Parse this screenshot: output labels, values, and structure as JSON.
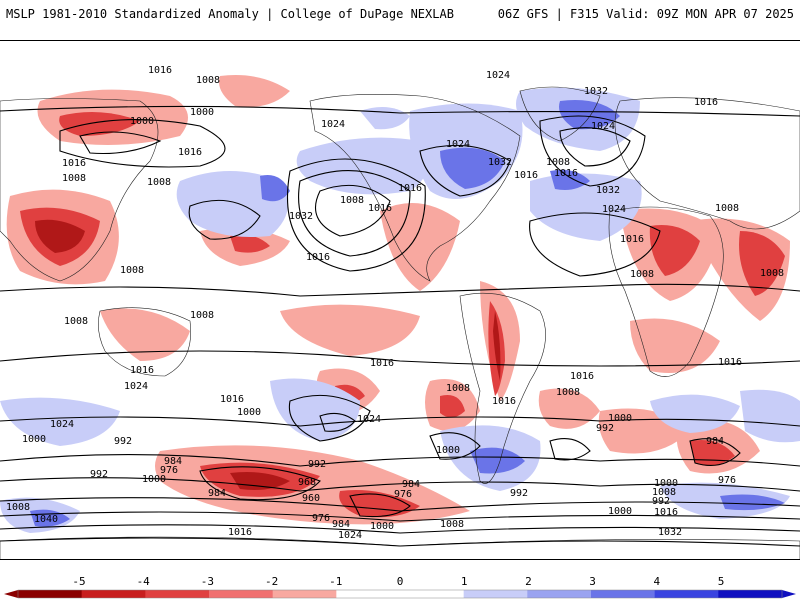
{
  "header": {
    "title_left": "MSLP 1981-2010 Standardized Anomaly | College of DuPage NEXLAB",
    "title_right": "06Z GFS | F315 Valid: 09Z MON APR 07 2025"
  },
  "colorbar": {
    "ticks": [
      "-5",
      "-4",
      "-3",
      "-2",
      "-1",
      "0",
      "1",
      "2",
      "3",
      "4",
      "5"
    ],
    "colors": [
      "#8b0000",
      "#c81e1e",
      "#e04040",
      "#f07070",
      "#f8a8a0",
      "#ffffff",
      "#ffffff",
      "#c8cdf8",
      "#9aa3f0",
      "#6a74e8",
      "#3a44e0",
      "#1010c0"
    ]
  },
  "isobar_labels": [
    "1016",
    "1008",
    "1000",
    "1024",
    "1016",
    "1008",
    "1000",
    "1016",
    "1008",
    "1024",
    "1032",
    "1008",
    "1016",
    "1016",
    "1032",
    "1024",
    "1032",
    "1008",
    "1016",
    "1016",
    "1032",
    "1024",
    "1016",
    "1016",
    "1008",
    "1024",
    "1008",
    "1016",
    "1008",
    "1016",
    "1008",
    "1016",
    "1008",
    "1016",
    "1024",
    "1016",
    "1024",
    "1000",
    "1016",
    "1000",
    "1008",
    "1024",
    "992",
    "1000",
    "984",
    "976",
    "992",
    "1008",
    "1040",
    "984",
    "968",
    "960",
    "992",
    "976",
    "984",
    "984",
    "976",
    "1000",
    "1008",
    "1000",
    "1016",
    "1024",
    "992",
    "1000",
    "984",
    "976",
    "1008",
    "992",
    "1000",
    "1016",
    "1032",
    "1008",
    "1016",
    "1000",
    "992",
    "1008"
  ]
}
